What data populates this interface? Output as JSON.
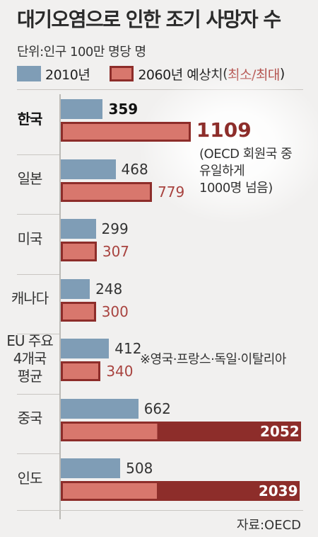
{
  "header": {
    "title": "대기오염으로 인한 조기 사망자 수",
    "unit": "단위:인구 100만 명당 명"
  },
  "legend": {
    "series_2010": "2010년",
    "series_2060_prefix": "2060년 예상치",
    "series_2060_paren_open": "(",
    "series_2060_paren": "최소/최대",
    "series_2060_paren_close": ")"
  },
  "annotations": {
    "korea_line1": "(OECD 회원국 중",
    "korea_line2": "유일하게",
    "korea_line3": "1000명 넘음)",
    "eu_note": "※영국·프랑스·독일·이탈리아"
  },
  "source": "자료:OECD",
  "colors": {
    "bar_2010": "#7f9db6",
    "bar_2060_fill": "#d8776d",
    "bar_2060_border": "#8d2d2a",
    "value_2060_text": "#a8433f"
  },
  "chart_data": {
    "type": "bar",
    "orientation": "horizontal",
    "title": "대기오염으로 인한 조기 사망자 수",
    "unit": "단위:인구 100만 명당 명",
    "categories": [
      "한국",
      "일본",
      "미국",
      "캐나다",
      "EU 주요 4개국 평균",
      "중국",
      "인도"
    ],
    "category_lines": [
      [
        "한국"
      ],
      [
        "일본"
      ],
      [
        "미국"
      ],
      [
        "캐나다"
      ],
      [
        "EU 주요",
        "4개국",
        "평균"
      ],
      [
        "중국"
      ],
      [
        "인도"
      ]
    ],
    "series": [
      {
        "name": "2010년",
        "values": [
          359,
          468,
          299,
          248,
          412,
          662,
          508
        ]
      },
      {
        "name": "2060년 예상치",
        "values": [
          1109,
          779,
          307,
          300,
          340,
          2052,
          2039
        ]
      }
    ],
    "legend_position": "top-left",
    "grid": false
  }
}
